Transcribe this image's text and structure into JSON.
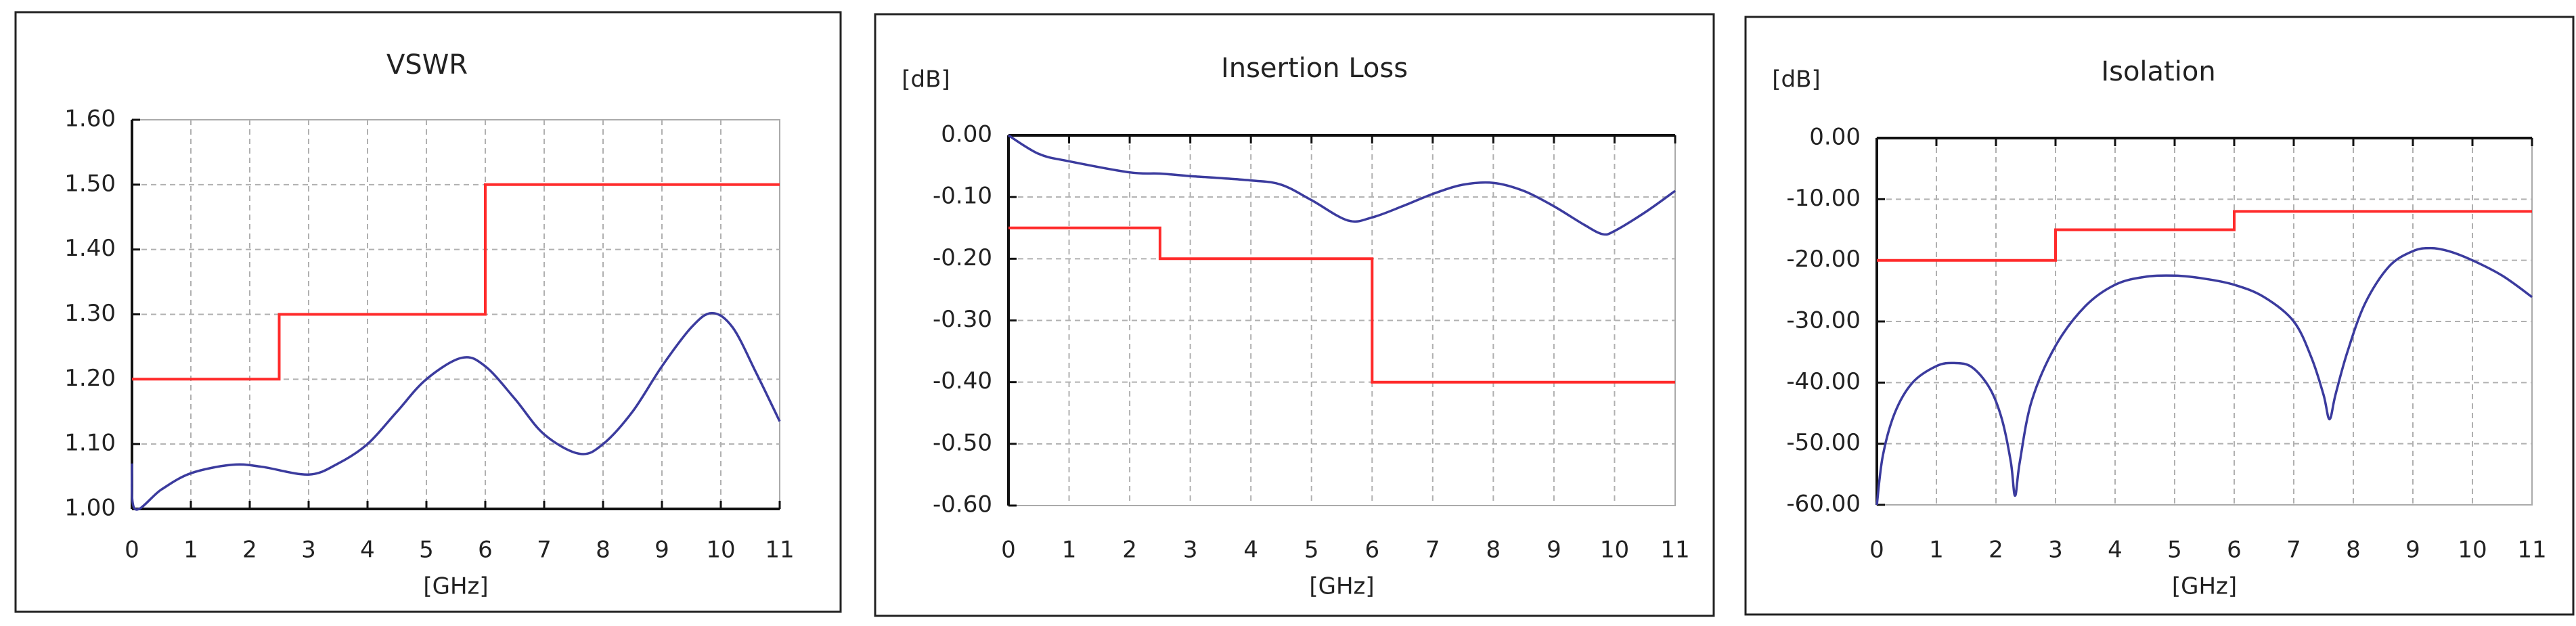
{
  "colors": {
    "limit": "#ff2b2b",
    "measured": "#3b3b9e",
    "grid": "#b0b0b0",
    "axis": "#111111"
  },
  "chart_data": [
    {
      "type": "line",
      "title": "VSWR",
      "xlabel": "[GHz]",
      "ylabel": "",
      "xlim": [
        0,
        11
      ],
      "ylim": [
        1.0,
        1.6
      ],
      "xticks": [
        "0",
        "1",
        "2",
        "3",
        "4",
        "5",
        "6",
        "7",
        "8",
        "9",
        "10",
        "11"
      ],
      "yticks": [
        "1.00",
        "1.10",
        "1.20",
        "1.30",
        "1.40",
        "1.50",
        "1.60"
      ],
      "axis_position": "bottom",
      "grid": true,
      "series": [
        {
          "role": "limit",
          "color": "#ff2b2b",
          "step": true,
          "x": [
            0,
            2.5,
            2.5,
            6,
            6,
            11
          ],
          "y": [
            1.2,
            1.2,
            1.3,
            1.3,
            1.5,
            1.5
          ]
        },
        {
          "role": "measured",
          "color": "#3b3b9e",
          "x": [
            0,
            0.05,
            0.5,
            1,
            1.7,
            2.2,
            3,
            3.5,
            4,
            4.5,
            5,
            5.6,
            6,
            6.5,
            7,
            7.6,
            8,
            8.5,
            9,
            9.5,
            9.85,
            10.2,
            10.6,
            11
          ],
          "y": [
            1.07,
            1.0,
            1.03,
            1.055,
            1.068,
            1.065,
            1.053,
            1.07,
            1.1,
            1.15,
            1.2,
            1.233,
            1.22,
            1.17,
            1.115,
            1.085,
            1.1,
            1.15,
            1.22,
            1.28,
            1.302,
            1.28,
            1.21,
            1.135
          ]
        }
      ]
    },
    {
      "type": "line",
      "title": "Insertion Loss",
      "xlabel": "[GHz]",
      "ylabel": "[dB]",
      "xlim": [
        0,
        11
      ],
      "ylim": [
        -0.6,
        0.0
      ],
      "xticks": [
        "0",
        "1",
        "2",
        "3",
        "4",
        "5",
        "6",
        "7",
        "8",
        "9",
        "10",
        "11"
      ],
      "yticks": [
        "-0.60",
        "-0.50",
        "-0.40",
        "-0.30",
        "-0.20",
        "-0.10",
        "0.00"
      ],
      "axis_position": "top",
      "grid": true,
      "series": [
        {
          "role": "limit",
          "color": "#ff2b2b",
          "step": true,
          "x": [
            0,
            2.5,
            2.5,
            6,
            6,
            11
          ],
          "y": [
            -0.15,
            -0.15,
            -0.2,
            -0.2,
            -0.4,
            -0.4
          ]
        },
        {
          "role": "measured",
          "color": "#3b3b9e",
          "x": [
            0,
            0.5,
            1,
            2,
            2.5,
            3,
            4,
            4.5,
            5,
            5.6,
            6,
            6.5,
            7,
            7.5,
            8,
            8.5,
            9,
            9.5,
            9.8,
            10,
            10.5,
            11
          ],
          "y": [
            0,
            -0.03,
            -0.042,
            -0.06,
            -0.062,
            -0.066,
            -0.073,
            -0.08,
            -0.105,
            -0.138,
            -0.133,
            -0.115,
            -0.095,
            -0.08,
            -0.077,
            -0.09,
            -0.115,
            -0.145,
            -0.16,
            -0.155,
            -0.125,
            -0.09
          ]
        }
      ]
    },
    {
      "type": "line",
      "title": "Isolation",
      "xlabel": "[GHz]",
      "ylabel": "[dB]",
      "xlim": [
        0,
        11
      ],
      "ylim": [
        -60,
        0
      ],
      "xticks": [
        "0",
        "1",
        "2",
        "3",
        "4",
        "5",
        "6",
        "7",
        "8",
        "9",
        "10",
        "11"
      ],
      "yticks": [
        "-60.00",
        "-50.00",
        "-40.00",
        "-30.00",
        "-20.00",
        "-10.00",
        "0.00"
      ],
      "axis_position": "top",
      "grid": true,
      "series": [
        {
          "role": "limit",
          "color": "#ff2b2b",
          "step": true,
          "x": [
            0,
            3,
            3,
            6,
            6,
            11
          ],
          "y": [
            -20,
            -20,
            -15,
            -15,
            -12,
            -12
          ]
        },
        {
          "role": "measured",
          "color": "#3b3b9e",
          "x": [
            0,
            0.1,
            0.3,
            0.6,
            1,
            1.3,
            1.6,
            1.9,
            2.1,
            2.25,
            2.32,
            2.4,
            2.6,
            3,
            3.5,
            4,
            4.5,
            5,
            5.5,
            6,
            6.5,
            7,
            7.3,
            7.5,
            7.6,
            7.7,
            7.9,
            8.2,
            8.6,
            9,
            9.3,
            9.6,
            10,
            10.5,
            11
          ],
          "y": [
            -60,
            -52,
            -45,
            -40,
            -37.3,
            -36.8,
            -37.5,
            -41,
            -46,
            -53,
            -58.5,
            -53,
            -43,
            -34,
            -27.5,
            -24,
            -22.7,
            -22.5,
            -23,
            -24,
            -26,
            -30,
            -36,
            -42,
            -46,
            -42,
            -35,
            -27,
            -21,
            -18.5,
            -18,
            -18.5,
            -20,
            -22.5,
            -26
          ]
        }
      ]
    }
  ]
}
